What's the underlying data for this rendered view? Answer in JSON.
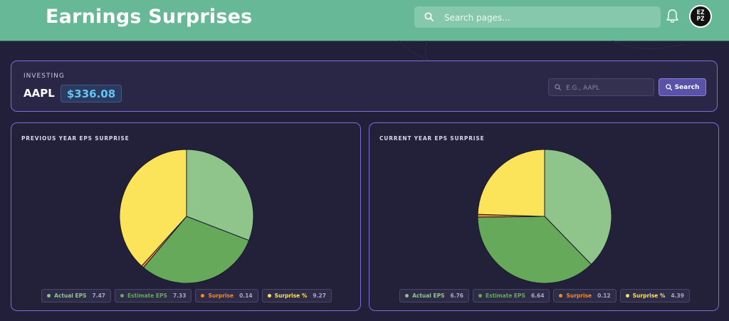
{
  "header": {
    "title": "Earnings Surprises",
    "search_placeholder": "Search pages...",
    "avatar_text": "EZ\nPZ",
    "icons": [
      "search-icon",
      "bell-icon"
    ]
  },
  "ticker": {
    "label": "INVESTING",
    "symbol": "AAPL",
    "price": "$336.08",
    "input_placeholder": "E.G., AAPL",
    "search_label": "Search"
  },
  "colors": {
    "actual": "#8fc48a",
    "estimate": "#66a95a",
    "surprise": "#f08a2c",
    "surprise_pct": "#fbe35a",
    "header": "#66b896",
    "accent": "#7b6fd6",
    "price": "#62c6f5"
  },
  "charts": [
    {
      "title": "PREVIOUS YEAR EPS SURPRISE",
      "legend": [
        {
          "label": "Actual EPS",
          "value": "7.47"
        },
        {
          "label": "Estimate EPS",
          "value": "7.33"
        },
        {
          "label": "Surprise",
          "value": "0.14"
        },
        {
          "label": "Surprise %",
          "value": "9.27"
        }
      ]
    },
    {
      "title": "CURRENT YEAR EPS SURPRISE",
      "legend": [
        {
          "label": "Actual EPS",
          "value": "6.76"
        },
        {
          "label": "Estimate EPS",
          "value": "6.64"
        },
        {
          "label": "Surprise",
          "value": "0.12"
        },
        {
          "label": "Surprise %",
          "value": "4.39"
        }
      ]
    }
  ],
  "chart_data": [
    {
      "type": "pie",
      "title": "PREVIOUS YEAR EPS SURPRISE",
      "categories": [
        "Actual EPS",
        "Estimate EPS",
        "Surprise",
        "Surprise %"
      ],
      "values": [
        7.47,
        7.33,
        0.14,
        9.27
      ],
      "legend": "bottom"
    },
    {
      "type": "pie",
      "title": "CURRENT YEAR EPS SURPRISE",
      "categories": [
        "Actual EPS",
        "Estimate EPS",
        "Surprise",
        "Surprise %"
      ],
      "values": [
        6.76,
        6.64,
        0.12,
        4.39
      ],
      "legend": "bottom"
    }
  ]
}
